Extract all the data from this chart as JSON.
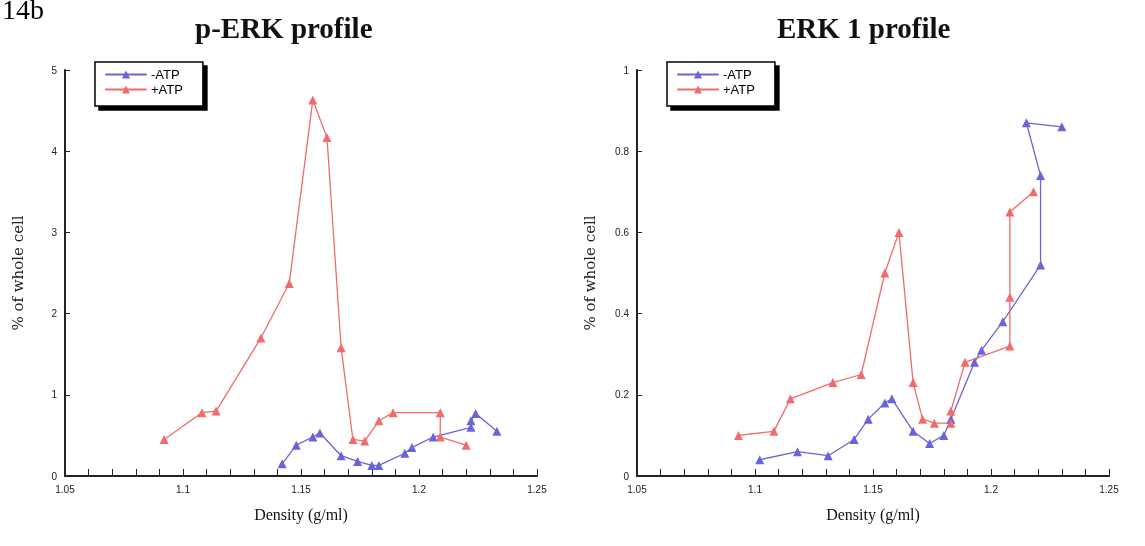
{
  "chart_data": [
    {
      "type": "line",
      "title": "p-ERK profile",
      "xlabel": "Density (g/ml)",
      "ylabel": "% of whole cell",
      "annotations": [
        "14b"
      ],
      "marker": "triangle",
      "legend": "top left",
      "grid": false,
      "xlim": [
        1.05,
        1.25
      ],
      "xticks": [
        1.05,
        {
          "value": 1.06,
          "label": null
        },
        {
          "value": 1.07,
          "label": null
        },
        {
          "value": 1.08,
          "label": null
        },
        {
          "value": 1.09,
          "label": null
        },
        1.1,
        {
          "value": 1.11,
          "label": null
        },
        {
          "value": 1.12,
          "label": null
        },
        {
          "value": 1.13,
          "label": null
        },
        {
          "value": 1.14,
          "label": null
        },
        1.15,
        {
          "value": 1.16,
          "label": null
        },
        {
          "value": 1.17,
          "label": null
        },
        {
          "value": 1.18,
          "label": null
        },
        {
          "value": 1.19,
          "label": null
        },
        1.2,
        {
          "value": 1.21,
          "label": null
        },
        {
          "value": 1.22,
          "label": null
        },
        {
          "value": 1.23,
          "label": null
        },
        {
          "value": 1.24,
          "label": null
        },
        1.25
      ],
      "ylim": [
        0,
        5
      ],
      "yticks": [
        0,
        1,
        2,
        3,
        4,
        5
      ],
      "series": [
        {
          "name": "-ATP",
          "color": "#6a64d8",
          "x": [
            1.142,
            1.148,
            1.155,
            1.158,
            1.167,
            1.174,
            1.18,
            1.183,
            1.194,
            1.197,
            1.206,
            1.222,
            1.222,
            1.224,
            1.233
          ],
          "values": [
            0.15,
            0.38,
            0.48,
            0.53,
            0.25,
            0.18,
            0.13,
            0.13,
            0.28,
            0.35,
            0.48,
            0.6,
            0.68,
            0.77,
            0.55
          ]
        },
        {
          "name": "+ATP",
          "color": "#f06c6c",
          "x": [
            1.092,
            1.108,
            1.114,
            1.133,
            1.145,
            1.155,
            1.161,
            1.167,
            1.172,
            1.177,
            1.183,
            1.189,
            1.209,
            1.209,
            1.22
          ],
          "values": [
            0.45,
            0.78,
            0.8,
            1.7,
            2.37,
            4.63,
            4.17,
            1.58,
            0.45,
            0.43,
            0.68,
            0.78,
            0.78,
            0.48,
            0.38
          ]
        }
      ]
    },
    {
      "type": "line",
      "title": "ERK 1 profile",
      "xlabel": "Density (g/ml)",
      "ylabel": "% of whole cell",
      "marker": "triangle",
      "legend": "top left",
      "grid": false,
      "xlim": [
        1.05,
        1.25
      ],
      "xticks": [
        1.05,
        {
          "value": 1.06,
          "label": null
        },
        {
          "value": 1.07,
          "label": null
        },
        {
          "value": 1.08,
          "label": null
        },
        {
          "value": 1.09,
          "label": null
        },
        1.1,
        {
          "value": 1.11,
          "label": null
        },
        {
          "value": 1.12,
          "label": null
        },
        {
          "value": 1.13,
          "label": null
        },
        {
          "value": 1.14,
          "label": null
        },
        1.15,
        {
          "value": 1.16,
          "label": null
        },
        {
          "value": 1.17,
          "label": null
        },
        {
          "value": 1.18,
          "label": null
        },
        {
          "value": 1.19,
          "label": null
        },
        1.2,
        {
          "value": 1.21,
          "label": null
        },
        {
          "value": 1.22,
          "label": null
        },
        {
          "value": 1.23,
          "label": null
        },
        {
          "value": 1.24,
          "label": null
        },
        1.25
      ],
      "ylim": [
        0,
        1
      ],
      "yticks": [
        0,
        0.2,
        0.4,
        0.6,
        0.8,
        1
      ],
      "series": [
        {
          "name": "-ATP",
          "color": "#6a64d8",
          "x": [
            1.102,
            1.118,
            1.131,
            1.142,
            1.148,
            1.155,
            1.158,
            1.167,
            1.174,
            1.18,
            1.183,
            1.193,
            1.196,
            1.205,
            1.221,
            1.221,
            1.215,
            1.23
          ],
          "values": [
            0.04,
            0.06,
            0.05,
            0.09,
            0.14,
            0.18,
            0.19,
            0.11,
            0.08,
            0.1,
            0.14,
            0.28,
            0.31,
            0.38,
            0.52,
            0.74,
            0.87,
            0.86
          ]
        },
        {
          "name": "+ATP",
          "color": "#f06c6c",
          "x": [
            1.093,
            1.108,
            1.115,
            1.133,
            1.145,
            1.155,
            1.161,
            1.167,
            1.171,
            1.176,
            1.183,
            1.183,
            1.189,
            1.208,
            1.208,
            1.208,
            1.218
          ],
          "values": [
            0.1,
            0.11,
            0.19,
            0.23,
            0.25,
            0.5,
            0.6,
            0.23,
            0.14,
            0.13,
            0.13,
            0.16,
            0.28,
            0.32,
            0.44,
            0.65,
            0.7
          ]
        }
      ]
    }
  ]
}
